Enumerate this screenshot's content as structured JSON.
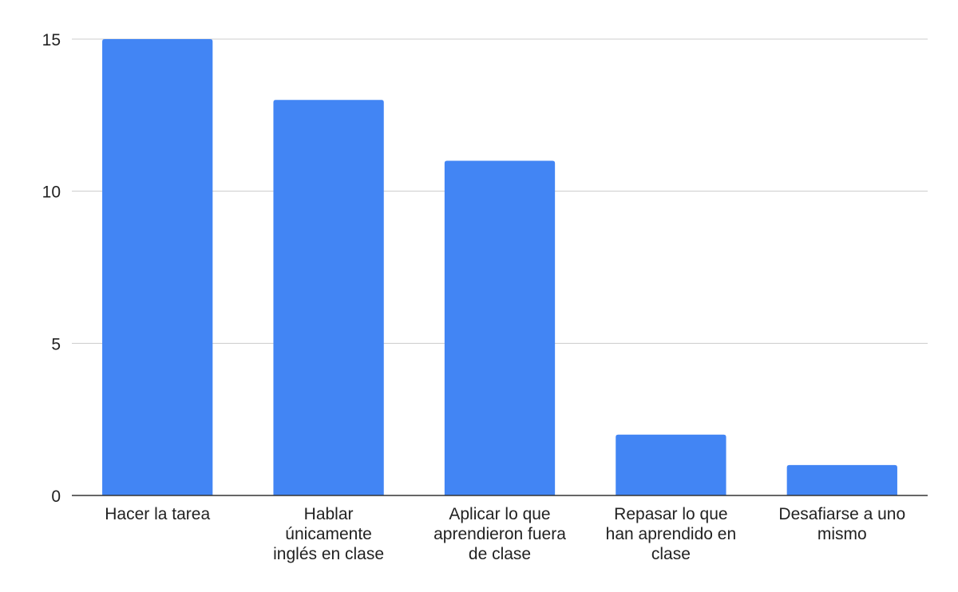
{
  "chart_data": {
    "type": "bar",
    "title": "",
    "xlabel": "",
    "ylabel": "",
    "categories": [
      [
        "Hacer la tarea"
      ],
      [
        "Hablar",
        "únicamente",
        "inglés en clase"
      ],
      [
        "Aplicar lo que",
        "aprendieron fuera",
        "de clase"
      ],
      [
        "Repasar lo que",
        "han aprendido en",
        "clase"
      ],
      [
        "Desafiarse a uno",
        "mismo"
      ]
    ],
    "values": [
      15,
      13,
      11,
      2,
      1
    ],
    "ylim": [
      0,
      15
    ],
    "yticks": [
      0,
      5,
      10,
      15
    ],
    "grid": true,
    "legend": "none",
    "colors": {
      "bar": "#4285f4",
      "grid": "#cccccc",
      "axis": "#333333",
      "text": "#222222"
    }
  }
}
